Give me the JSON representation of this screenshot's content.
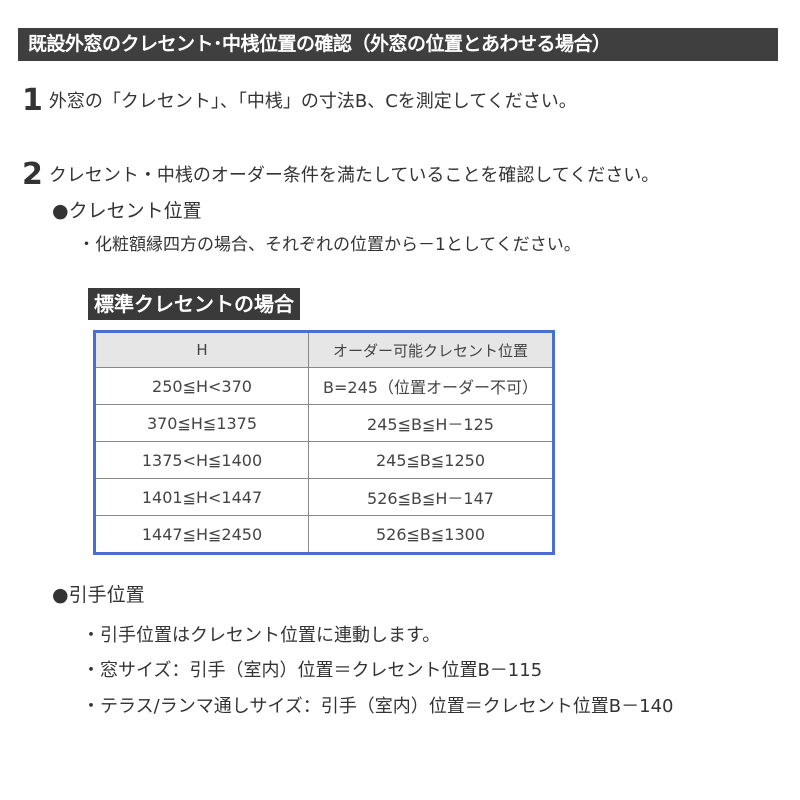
{
  "title": "既設外窓のクレセント･中桟位置の確認（外窓の位置とあわせる場合）",
  "steps": [
    {
      "num": "1",
      "text": "外窓の「クレセント」、「中桟」の寸法B、Cを測定してください。"
    },
    {
      "num": "2",
      "text": "クレセント・中桟のオーダー条件を満たしていることを確認してください。"
    }
  ],
  "crescent": {
    "heading": "●クレセント位置",
    "note": "・化粧額縁四方の場合、それぞれの位置から－1としてください。"
  },
  "table": {
    "title": "標準クレセントの場合",
    "headers": [
      "H",
      "オーダー可能クレセント位置"
    ],
    "rows": [
      [
        "250≦H<370",
        "B=245（位置オーダー不可）"
      ],
      [
        "370≦H≦1375",
        "245≦B≦H－125"
      ],
      [
        "1375<H≦1400",
        "245≦B≦1250"
      ],
      [
        "1401≦H<1447",
        "526≦B≦H－147"
      ],
      [
        "1447≦H≦2450",
        "526≦B≦1300"
      ]
    ]
  },
  "handle": {
    "heading": "●引手位置",
    "notes": [
      "・引手位置はクレセント位置に連動します。",
      "・窓サイズ：引手（室内）位置＝クレセント位置B－115",
      "・テラス/ランマ通しサイズ：引手（室内）位置＝クレセント位置B－140"
    ]
  }
}
